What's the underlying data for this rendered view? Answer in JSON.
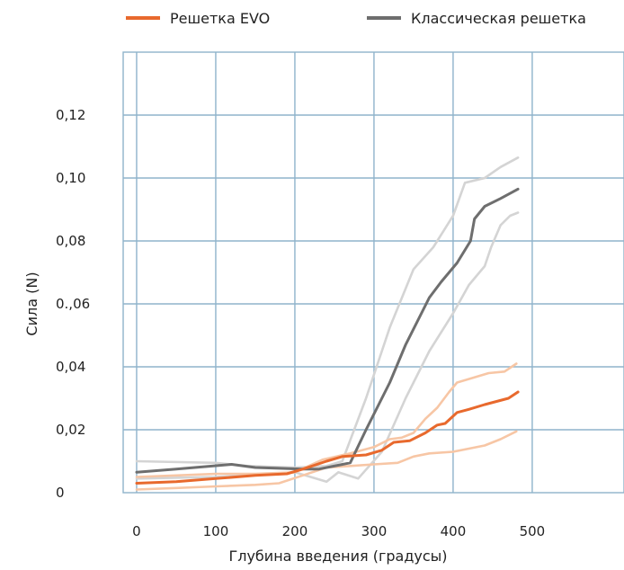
{
  "chart_data": {
    "type": "line",
    "title": "",
    "xlabel": "Глубина введения (градусы)",
    "ylabel": "Сила (N)",
    "xlim": [
      -17,
      616
    ],
    "ylim": [
      0,
      0.14
    ],
    "x_ticks": [
      0,
      100,
      200,
      300,
      400,
      500
    ],
    "x_tick_labels": [
      "0",
      "100",
      "200",
      "300",
      "400",
      "500"
    ],
    "y_ticks": [
      0,
      0.02,
      0.04,
      0.06,
      0.08,
      0.1,
      0.12
    ],
    "y_tick_labels": [
      "0",
      "0,02",
      "0,04",
      "0.,06",
      "0,08",
      "0,10",
      "0,12"
    ],
    "grid": true,
    "legend": {
      "position": "top",
      "items": [
        {
          "name": "Решетка EVO",
          "color": "#E8692D"
        },
        {
          "name": "Классическая решетка",
          "color": "#6E6E6E"
        }
      ]
    },
    "series": [
      {
        "name": "Решетка EVO",
        "color": "#E8692D",
        "points": [
          [
            0,
            0.003
          ],
          [
            50,
            0.0035
          ],
          [
            100,
            0.0045
          ],
          [
            150,
            0.0055
          ],
          [
            190,
            0.006
          ],
          [
            210,
            0.0075
          ],
          [
            240,
            0.01
          ],
          [
            260,
            0.0115
          ],
          [
            290,
            0.012
          ],
          [
            310,
            0.0135
          ],
          [
            325,
            0.016
          ],
          [
            345,
            0.0165
          ],
          [
            365,
            0.019
          ],
          [
            380,
            0.0215
          ],
          [
            390,
            0.022
          ],
          [
            405,
            0.0255
          ],
          [
            420,
            0.0265
          ],
          [
            440,
            0.028
          ],
          [
            470,
            0.03
          ],
          [
            482,
            0.032
          ]
        ]
      },
      {
        "color": "#F7C6A5",
        "points": [
          [
            0,
            0.005
          ],
          [
            50,
            0.0055
          ],
          [
            100,
            0.006
          ],
          [
            150,
            0.006
          ],
          [
            200,
            0.0065
          ],
          [
            235,
            0.0105
          ],
          [
            270,
            0.0125
          ],
          [
            300,
            0.0145
          ],
          [
            320,
            0.017
          ],
          [
            335,
            0.0175
          ],
          [
            350,
            0.019
          ],
          [
            365,
            0.0235
          ],
          [
            380,
            0.027
          ],
          [
            395,
            0.032
          ],
          [
            405,
            0.035
          ],
          [
            425,
            0.0365
          ],
          [
            445,
            0.038
          ],
          [
            465,
            0.0385
          ],
          [
            480,
            0.041
          ]
        ]
      },
      {
        "color": "#F7C6A5",
        "points": [
          [
            0,
            0.001
          ],
          [
            50,
            0.0015
          ],
          [
            100,
            0.002
          ],
          [
            150,
            0.0025
          ],
          [
            180,
            0.003
          ],
          [
            210,
            0.0055
          ],
          [
            240,
            0.008
          ],
          [
            270,
            0.0085
          ],
          [
            300,
            0.009
          ],
          [
            330,
            0.0095
          ],
          [
            350,
            0.0115
          ],
          [
            370,
            0.0125
          ],
          [
            400,
            0.013
          ],
          [
            420,
            0.014
          ],
          [
            440,
            0.015
          ],
          [
            460,
            0.017
          ],
          [
            480,
            0.0195
          ]
        ]
      },
      {
        "name": "Классическая решетка",
        "color": "#6E6E6E",
        "points": [
          [
            0,
            0.0065
          ],
          [
            50,
            0.0075
          ],
          [
            120,
            0.009
          ],
          [
            150,
            0.008
          ],
          [
            210,
            0.0075
          ],
          [
            230,
            0.0075
          ],
          [
            270,
            0.0095
          ],
          [
            290,
            0.02
          ],
          [
            320,
            0.035
          ],
          [
            340,
            0.047
          ],
          [
            370,
            0.062
          ],
          [
            385,
            0.067
          ],
          [
            405,
            0.073
          ],
          [
            422,
            0.08
          ],
          [
            427,
            0.087
          ],
          [
            440,
            0.091
          ],
          [
            460,
            0.0935
          ],
          [
            482,
            0.0965
          ]
        ]
      },
      {
        "color": "#D4D4D4",
        "points": [
          [
            0,
            0.01
          ],
          [
            100,
            0.0095
          ],
          [
            140,
            0.0085
          ],
          [
            200,
            0.008
          ],
          [
            240,
            0.0085
          ],
          [
            260,
            0.01
          ],
          [
            290,
            0.03
          ],
          [
            320,
            0.0525
          ],
          [
            350,
            0.071
          ],
          [
            375,
            0.078
          ],
          [
            400,
            0.088
          ],
          [
            415,
            0.0985
          ],
          [
            440,
            0.1
          ],
          [
            460,
            0.1035
          ],
          [
            482,
            0.1065
          ]
        ]
      },
      {
        "color": "#D4D4D4",
        "points": [
          [
            0,
            0.0045
          ],
          [
            100,
            0.005
          ],
          [
            200,
            0.0065
          ],
          [
            240,
            0.0035
          ],
          [
            255,
            0.0065
          ],
          [
            280,
            0.0045
          ],
          [
            310,
            0.013
          ],
          [
            340,
            0.03
          ],
          [
            370,
            0.045
          ],
          [
            400,
            0.057
          ],
          [
            420,
            0.066
          ],
          [
            440,
            0.072
          ],
          [
            448,
            0.078
          ],
          [
            460,
            0.085
          ],
          [
            472,
            0.088
          ],
          [
            482,
            0.089
          ]
        ]
      }
    ]
  }
}
